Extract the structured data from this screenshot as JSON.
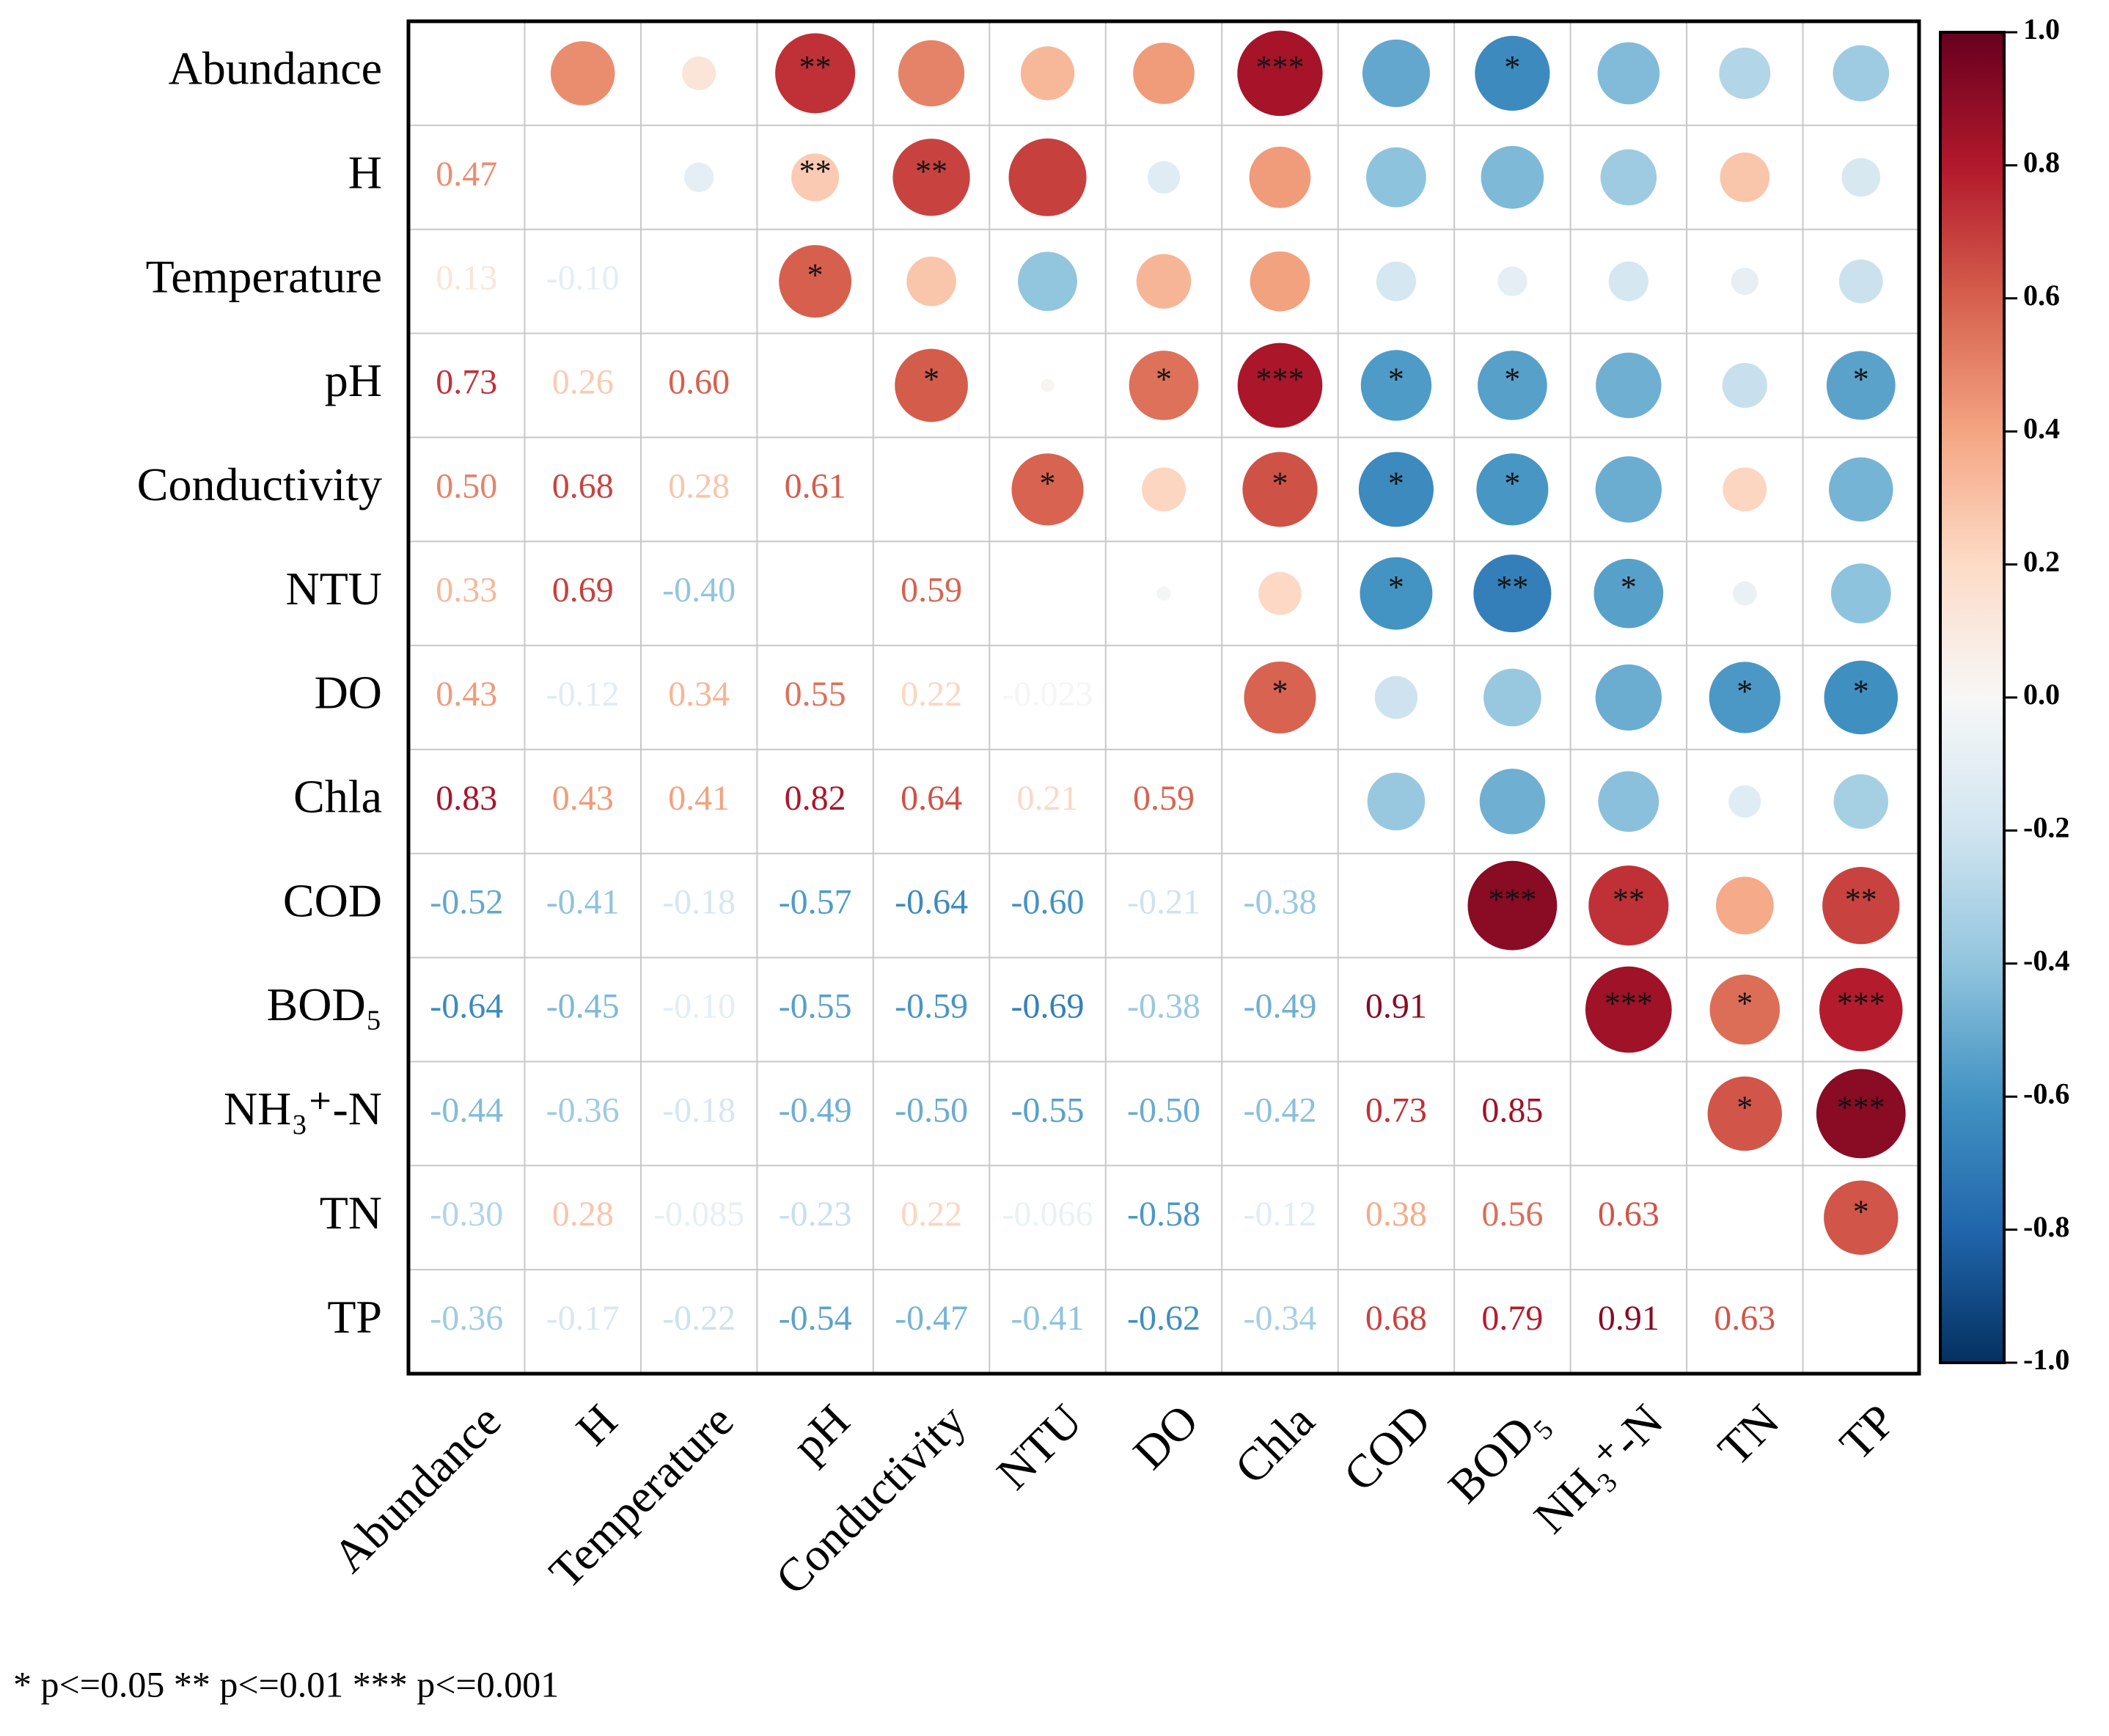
{
  "chart_data": {
    "type": "correlation",
    "labels": [
      "Abundance",
      "H",
      "Temperature",
      "pH",
      "Conductivity",
      "NTU",
      "DO",
      "Chla",
      "COD",
      "BOD₅",
      "NH₃⁺-N",
      "TN",
      "TP"
    ],
    "values": [
      [],
      [
        0.47
      ],
      [
        0.13,
        -0.1
      ],
      [
        0.73,
        0.26,
        0.6
      ],
      [
        0.5,
        0.68,
        0.28,
        0.61
      ],
      [
        0.33,
        0.69,
        -0.4,
        0.02,
        0.59
      ],
      [
        0.43,
        -0.12,
        0.34,
        0.55,
        0.22,
        -0.023
      ],
      [
        0.83,
        0.43,
        0.41,
        0.82,
        0.64,
        0.21,
        0.59
      ],
      [
        -0.52,
        -0.41,
        -0.18,
        -0.57,
        -0.64,
        -0.6,
        -0.21,
        -0.38
      ],
      [
        -0.64,
        -0.45,
        -0.1,
        -0.55,
        -0.59,
        -0.69,
        -0.38,
        -0.49,
        0.91
      ],
      [
        -0.44,
        -0.36,
        -0.18,
        -0.49,
        -0.5,
        -0.55,
        -0.5,
        -0.42,
        0.73,
        0.85
      ],
      [
        -0.3,
        0.28,
        -0.085,
        -0.23,
        0.22,
        -0.066,
        -0.58,
        -0.12,
        0.38,
        0.56,
        0.63
      ],
      [
        -0.36,
        -0.17,
        -0.22,
        -0.54,
        -0.47,
        -0.41,
        -0.62,
        -0.34,
        0.68,
        0.79,
        0.91,
        0.63
      ]
    ],
    "value_labels": [
      [],
      [
        "0.47"
      ],
      [
        "0.13",
        "-0.10"
      ],
      [
        "0.73",
        "0.26",
        "0.60"
      ],
      [
        "0.50",
        "0.68",
        "0.28",
        "0.61"
      ],
      [
        "0.33",
        "0.69",
        "-0.40",
        null,
        "0.59"
      ],
      [
        "0.43",
        "-0.12",
        "0.34",
        "0.55",
        "0.22",
        "-0.023"
      ],
      [
        "0.83",
        "0.43",
        "0.41",
        "0.82",
        "0.64",
        "0.21",
        "0.59"
      ],
      [
        "-0.52",
        "-0.41",
        "-0.18",
        "-0.57",
        "-0.64",
        "-0.60",
        "-0.21",
        "-0.38"
      ],
      [
        "-0.64",
        "-0.45",
        "-0.10",
        "-0.55",
        "-0.59",
        "-0.69",
        "-0.38",
        "-0.49",
        "0.91"
      ],
      [
        "-0.44",
        "-0.36",
        "-0.18",
        "-0.49",
        "-0.50",
        "-0.55",
        "-0.50",
        "-0.42",
        "0.73",
        "0.85"
      ],
      [
        "-0.30",
        "0.28",
        "-0.085",
        "-0.23",
        "0.22",
        "-0.066",
        "-0.58",
        "-0.12",
        "0.38",
        "0.56",
        "0.63"
      ],
      [
        "-0.36",
        "-0.17",
        "-0.22",
        "-0.54",
        "-0.47",
        "-0.41",
        "-0.62",
        "-0.34",
        "0.68",
        "0.79",
        "0.91",
        "0.63"
      ]
    ],
    "stars": [
      [
        null,
        null,
        "**",
        null,
        null,
        null,
        "***",
        null,
        "*",
        null,
        null,
        null
      ],
      [
        null,
        "**",
        "**",
        null,
        null,
        null,
        null,
        null,
        null,
        null,
        null
      ],
      [
        "*",
        null,
        null,
        null,
        null,
        null,
        null,
        null,
        null,
        null
      ],
      [
        "*",
        null,
        "*",
        "***",
        "*",
        "*",
        null,
        null,
        "*"
      ],
      [
        "*",
        null,
        "*",
        "*",
        "*",
        null,
        null,
        null
      ],
      [
        null,
        null,
        "*",
        "**",
        "*",
        null,
        null
      ],
      [
        "*",
        null,
        null,
        null,
        "*",
        "*"
      ],
      [
        null,
        null,
        null,
        null,
        null
      ],
      [
        "***",
        "**",
        null,
        "**"
      ],
      [
        "***",
        "*",
        "***"
      ],
      [
        "*",
        "***"
      ],
      [
        "*"
      ]
    ],
    "note": "* p<=0.05  ** p<=0.01  *** p<=0.001",
    "colormap": [
      "#053061",
      "#2166ac",
      "#4393c3",
      "#92c5de",
      "#d1e5f0",
      "#f7f7f7",
      "#fddbc7",
      "#f4a582",
      "#d6604d",
      "#b2182b",
      "#67001f"
    ],
    "clim": [
      -1,
      1
    ],
    "cticks": [
      {
        "value": -1,
        "label": "-1.0"
      },
      {
        "value": -0.8,
        "label": "-0.8"
      },
      {
        "value": -0.6,
        "label": "-0.6"
      },
      {
        "value": -0.4,
        "label": "-0.4"
      },
      {
        "value": -0.2,
        "label": "-0.2"
      },
      {
        "value": 0,
        "label": "0.0"
      },
      {
        "value": 0.2,
        "label": "0.2"
      },
      {
        "value": 0.4,
        "label": "0.4"
      },
      {
        "value": 0.6,
        "label": "0.6"
      },
      {
        "value": 0.8,
        "label": "0.8"
      },
      {
        "value": 1,
        "label": "1.0"
      }
    ]
  }
}
